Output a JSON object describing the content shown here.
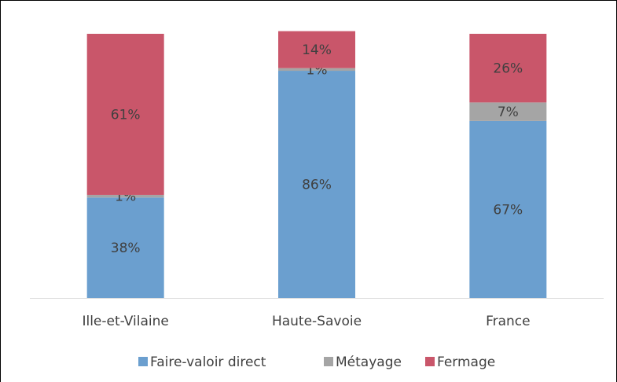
{
  "chart_data": {
    "type": "stacked_bar",
    "categories": [
      "Ille-et-Vilaine",
      "Haute-Savoie",
      "France"
    ],
    "series": [
      {
        "name": "Faire-valoir direct",
        "color": "#6b9fcf",
        "values": [
          38,
          86,
          67
        ],
        "value_labels": [
          "38%",
          "86%",
          "67%"
        ]
      },
      {
        "name": "Métayage",
        "color": "#a5a5a5",
        "values": [
          1,
          1,
          7
        ],
        "value_labels": [
          "1%",
          "1%",
          "7%"
        ]
      },
      {
        "name": "Fermage",
        "color": "#c9566a",
        "values": [
          61,
          14,
          26
        ],
        "value_labels": [
          "61%",
          "14%",
          "26%"
        ]
      }
    ],
    "ylim": [
      0,
      100
    ],
    "legend": "bottom"
  }
}
